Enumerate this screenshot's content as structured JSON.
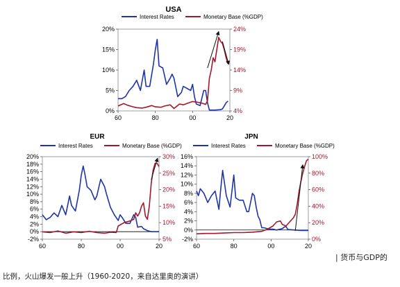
{
  "caption_right": "| 货币与GDP的",
  "caption_bottom": "比例，火山爆发一般上升（1960-2020，来自达里奥的演讲）",
  "colors": {
    "interest": "#1f33a8",
    "monetary": "#a3172c",
    "annotation_arrow": "#111111"
  },
  "chart_data": [
    {
      "type": "line",
      "title": "USA",
      "legend_position": "top",
      "x_tick_labels": [
        "60",
        "80",
        "00",
        "20"
      ],
      "x_ticks": [
        1960,
        1980,
        2000,
        2020
      ],
      "xlim": [
        1960,
        2020
      ],
      "y_left": {
        "ticks": [
          "0%",
          "5%",
          "10%",
          "15%",
          "20%"
        ],
        "values": [
          0,
          5,
          10,
          15,
          20
        ],
        "lim": [
          0,
          20
        ]
      },
      "y_right": {
        "ticks": [
          "4%",
          "9%",
          "14%",
          "19%",
          "24%"
        ],
        "values": [
          4,
          9,
          14,
          19,
          24
        ],
        "lim": [
          4,
          24
        ]
      },
      "series": [
        {
          "name": "Interest Rates",
          "axis": "left",
          "color": "#1f33a8",
          "x": [
            1960,
            1962,
            1964,
            1966,
            1968,
            1970,
            1972,
            1974,
            1975,
            1977,
            1979,
            1980,
            1981,
            1982,
            1984,
            1986,
            1988,
            1989,
            1990,
            1992,
            1994,
            1995,
            1997,
            1999,
            2000,
            2001,
            2002,
            2004,
            2006,
            2007,
            2008,
            2009,
            2012,
            2015,
            2016,
            2017,
            2018,
            2019
          ],
          "y": [
            3,
            3,
            3.5,
            5,
            6,
            7.5,
            5,
            10,
            6,
            6,
            11.5,
            15,
            17.5,
            11,
            10.5,
            6.5,
            8,
            9,
            8,
            3.5,
            4.5,
            6,
            5.5,
            5,
            6.5,
            3.5,
            1.7,
            1.3,
            5,
            5,
            2,
            0.2,
            0.2,
            0.3,
            0.5,
            1.2,
            2,
            2.4
          ]
        },
        {
          "name": "Monetary Base (%GDP)",
          "axis": "right",
          "color": "#a3172c",
          "x": [
            1960,
            1963,
            1965,
            1968,
            1970,
            1973,
            1975,
            1978,
            1980,
            1983,
            1985,
            1988,
            1990,
            1993,
            1995,
            1998,
            2000,
            2003,
            2005,
            2007,
            2008,
            2009,
            2010,
            2011,
            2012,
            2013,
            2014,
            2015,
            2016,
            2017,
            2018,
            2019
          ],
          "y": [
            5.2,
            5.8,
            5.4,
            5.0,
            4.8,
            4.7,
            4.9,
            5.3,
            5.0,
            4.9,
            5.2,
            5.5,
            4.6,
            5.7,
            5.5,
            6.0,
            6.3,
            6.1,
            5.9,
            5.6,
            6.5,
            12,
            14,
            17,
            16,
            19,
            22,
            21,
            20.5,
            19,
            17,
            15.5
          ]
        }
      ],
      "annotations": [
        "arrow-up 2008-2014",
        "arrow-down 2016-2019"
      ]
    },
    {
      "type": "line",
      "title": "EUR",
      "legend_position": "top",
      "x_tick_labels": [
        "60",
        "80",
        "00",
        "20"
      ],
      "x_ticks": [
        1960,
        1980,
        2000,
        2020
      ],
      "xlim": [
        1960,
        2020
      ],
      "y_left": {
        "ticks": [
          "-2%",
          "0%",
          "2%",
          "4%",
          "6%",
          "8%",
          "10%",
          "12%",
          "14%",
          "16%",
          "18%",
          "20%"
        ],
        "values": [
          -2,
          0,
          2,
          4,
          6,
          8,
          10,
          12,
          14,
          16,
          18,
          20
        ],
        "lim": [
          -2,
          20
        ]
      },
      "y_right": {
        "ticks": [
          "5%",
          "10%",
          "15%",
          "20%",
          "25%",
          "30%"
        ],
        "values": [
          5,
          10,
          15,
          20,
          25,
          30
        ],
        "lim": [
          5,
          30
        ]
      },
      "series": [
        {
          "name": "Interest Rates",
          "axis": "left",
          "color": "#1f33a8",
          "x": [
            1960,
            1962,
            1964,
            1966,
            1968,
            1970,
            1972,
            1974,
            1975,
            1977,
            1979,
            1980,
            1981,
            1982,
            1983,
            1985,
            1987,
            1988,
            1990,
            1992,
            1993,
            1995,
            1997,
            1999,
            2000,
            2001,
            2003,
            2005,
            2007,
            2008,
            2009,
            2011,
            2012,
            2014,
            2016,
            2018,
            2020
          ],
          "y": [
            4.5,
            3.2,
            3.8,
            5,
            4,
            7,
            4.5,
            9.5,
            7,
            5.5,
            11,
            15,
            17.5,
            15,
            12,
            11,
            8.5,
            9.5,
            14,
            12,
            10,
            6.5,
            4.5,
            3,
            4.5,
            3.8,
            2.2,
            2.2,
            4.5,
            3.8,
            1.2,
            1.4,
            0.8,
            0.3,
            0,
            0,
            0
          ]
        },
        {
          "name": "Monetary Base (%GDP)",
          "axis": "right",
          "color": "#a3172c",
          "x": [
            1960,
            1964,
            1968,
            1972,
            1976,
            1980,
            1984,
            1988,
            1992,
            1995,
            1998,
            1999,
            2002,
            2005,
            2007,
            2008,
            2009,
            2010,
            2011,
            2012,
            2013,
            2014,
            2015,
            2016,
            2017,
            2018,
            2019,
            2020
          ],
          "y": [
            7.2,
            7.0,
            7.5,
            6.8,
            7.2,
            7.0,
            7.4,
            7.0,
            6.8,
            7.1,
            7.0,
            9,
            10,
            10.5,
            11,
            13,
            12,
            13,
            15,
            16,
            12,
            11,
            15,
            22,
            26,
            28,
            28,
            27
          ]
        }
      ],
      "annotations": [
        "arrow-up 2016-2019"
      ]
    },
    {
      "type": "line",
      "title": "JPN",
      "legend_position": "top",
      "x_tick_labels": [
        "60",
        "80",
        "00",
        "20"
      ],
      "x_ticks": [
        1960,
        1980,
        2000,
        2020
      ],
      "xlim": [
        1960,
        2020
      ],
      "y_left": {
        "ticks": [
          "-2%",
          "0%",
          "2%",
          "4%",
          "6%",
          "8%",
          "10%",
          "12%",
          "14%",
          "16%"
        ],
        "values": [
          -2,
          0,
          2,
          4,
          6,
          8,
          10,
          12,
          14,
          16
        ],
        "lim": [
          -2,
          16
        ]
      },
      "y_right": {
        "ticks": [
          "0%",
          "20%",
          "40%",
          "60%",
          "80%",
          "100%"
        ],
        "values": [
          0,
          20,
          40,
          60,
          80,
          100
        ],
        "lim": [
          0,
          100
        ]
      },
      "series": [
        {
          "name": "Interest Rates",
          "axis": "left",
          "color": "#1f33a8",
          "x": [
            1960,
            1961,
            1962,
            1964,
            1966,
            1968,
            1970,
            1972,
            1973,
            1974,
            1976,
            1978,
            1980,
            1981,
            1983,
            1985,
            1987,
            1988,
            1990,
            1991,
            1992,
            1993,
            1994,
            1995,
            1996,
            1999,
            2001,
            2003,
            2006,
            2007,
            2008,
            2009,
            2013,
            2016,
            2018,
            2020
          ],
          "y": [
            8.5,
            7.5,
            9,
            8,
            6,
            7.5,
            8.5,
            4.5,
            9,
            13,
            7.5,
            5,
            12,
            7,
            6.5,
            6.5,
            4,
            4,
            8,
            7.5,
            5,
            3,
            2.2,
            0.5,
            0.5,
            0.2,
            0.2,
            0,
            0.3,
            0.6,
            0.8,
            0.1,
            0,
            -0.1,
            -0.1,
            -0.1
          ]
        },
        {
          "name": "Monetary Base (%GDP)",
          "axis": "right",
          "color": "#a3172c",
          "x": [
            1960,
            1965,
            1970,
            1975,
            1980,
            1985,
            1990,
            1995,
            1998,
            2001,
            2003,
            2005,
            2006,
            2008,
            2010,
            2012,
            2013,
            2014,
            2015,
            2016,
            2017,
            2018,
            2019,
            2020
          ],
          "y": [
            6.5,
            7,
            7,
            7.5,
            8,
            8,
            8.5,
            9.5,
            12,
            16,
            21,
            22,
            18,
            16,
            21,
            26,
            30,
            42,
            58,
            70,
            80,
            88,
            95,
            97
          ]
        }
      ],
      "annotations": [
        "arrow-up 2013-2017"
      ]
    }
  ]
}
